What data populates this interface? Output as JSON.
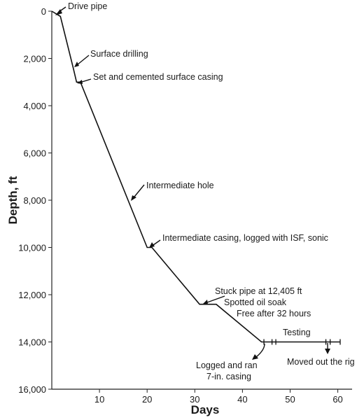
{
  "chart_data": {
    "type": "line",
    "xlabel": "Days",
    "ylabel": "Depth, ft",
    "xlim": [
      0,
      63
    ],
    "ylim": [
      0,
      16000
    ],
    "y_inverted": true,
    "grid": false,
    "x_ticks": [
      10,
      20,
      30,
      40,
      50,
      60
    ],
    "x_tick_labels": [
      "10",
      "20",
      "30",
      "40",
      "50",
      "60"
    ],
    "y_ticks": [
      0,
      2000,
      4000,
      6000,
      8000,
      10000,
      12000,
      14000,
      16000
    ],
    "y_tick_labels": [
      "0",
      "2,000",
      "4,000",
      "6,000",
      "8,000",
      "10,000",
      "12,000",
      "14,000",
      "16,000"
    ],
    "series": [
      {
        "points": [
          {
            "x": 0,
            "y": 0
          },
          {
            "x": 1.8,
            "y": 220
          },
          {
            "x": 4.5,
            "y": 2400
          },
          {
            "x": 5.2,
            "y": 3000
          },
          {
            "x": 6.0,
            "y": 3000
          },
          {
            "x": 20.0,
            "y": 10000
          },
          {
            "x": 21.0,
            "y": 10000
          },
          {
            "x": 31.0,
            "y": 12405
          },
          {
            "x": 34.5,
            "y": 12405
          },
          {
            "x": 44.0,
            "y": 14000
          },
          {
            "x": 60.5,
            "y": 14000
          }
        ],
        "markers_x": [
          44.5,
          46.2,
          47.0,
          57.5,
          58.4,
          60.5
        ]
      }
    ],
    "annotations": [
      {
        "text": "Drive pipe",
        "x": 1.2,
        "y": 100
      },
      {
        "text": "Surface drilling",
        "x": 4.6,
        "y": 2400
      },
      {
        "text": "Set and cemented surface casing",
        "x": 5.6,
        "y": 3000
      },
      {
        "text": "Intermediate hole",
        "x": 16.5,
        "y": 8000
      },
      {
        "text": "Intermediate casing, logged with ISF, sonic",
        "x": 20.4,
        "y": 10000
      },
      {
        "text": "Stuck pipe at 12,405 ft",
        "x": 32.0,
        "y": 12405
      },
      {
        "text": "Spotted oil soak",
        "x": 0,
        "y": 0
      },
      {
        "text": "Free after 32 hours",
        "x": 0,
        "y": 0
      },
      {
        "text": "Testing",
        "x": 0,
        "y": 0
      },
      {
        "text": "Moved out the rig",
        "x": 58.5,
        "y": 14000
      },
      {
        "text": "Logged and ran",
        "x": 44.0,
        "y": 14000
      },
      {
        "text": "7-in. casing",
        "x": 0,
        "y": 0
      }
    ]
  }
}
